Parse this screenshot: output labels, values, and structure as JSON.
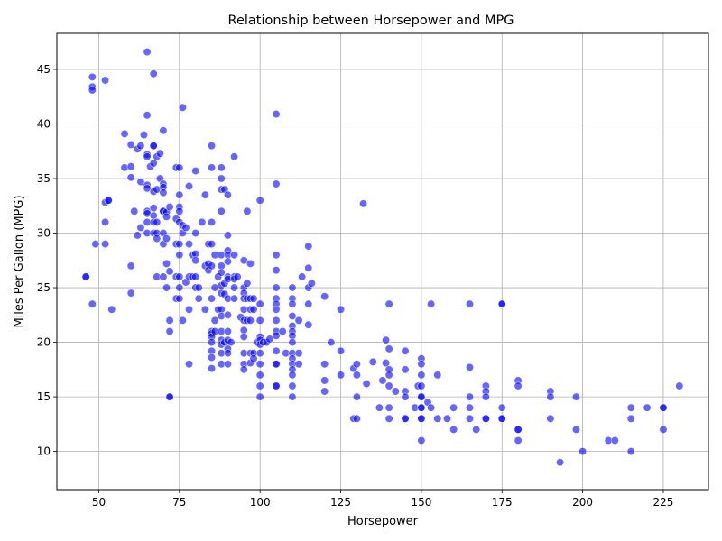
{
  "chart_data": {
    "type": "scatter",
    "title": "Relationship between Horsepower and MPG",
    "xlabel": "Horsepower",
    "ylabel": "Miles Per Gallon (MPG)",
    "xlim": [
      37,
      239
    ],
    "ylim": [
      6.5,
      48.3
    ],
    "xticks": [
      50,
      75,
      100,
      125,
      150,
      175,
      200,
      225
    ],
    "yticks": [
      10,
      15,
      20,
      25,
      30,
      35,
      40,
      45
    ],
    "grid": true,
    "marker_color": "#0000ff",
    "marker_alpha": 0.6,
    "points": [
      [
        46,
        26
      ],
      [
        46,
        26
      ],
      [
        48,
        44.3
      ],
      [
        48,
        43.4
      ],
      [
        48,
        43.1
      ],
      [
        48,
        23.5
      ],
      [
        49,
        29
      ],
      [
        52,
        44
      ],
      [
        52,
        32.8
      ],
      [
        52,
        31
      ],
      [
        52,
        29
      ],
      [
        53,
        33
      ],
      [
        53,
        33
      ],
      [
        54,
        23
      ],
      [
        58,
        39.1
      ],
      [
        58,
        36
      ],
      [
        60,
        38.1
      ],
      [
        60,
        36.1
      ],
      [
        60,
        35.1
      ],
      [
        60,
        27
      ],
      [
        60,
        24.5
      ],
      [
        61,
        32
      ],
      [
        62,
        37.7
      ],
      [
        62,
        29.8
      ],
      [
        63,
        38
      ],
      [
        63,
        34.7
      ],
      [
        63,
        30.5
      ],
      [
        64,
        39
      ],
      [
        65,
        46.6
      ],
      [
        65,
        40.8
      ],
      [
        65,
        37.2
      ],
      [
        65,
        37
      ],
      [
        65,
        34.4
      ],
      [
        65,
        34.1
      ],
      [
        65,
        32
      ],
      [
        65,
        31.8
      ],
      [
        65,
        31
      ],
      [
        65,
        30
      ],
      [
        66,
        36.1
      ],
      [
        67,
        44.6
      ],
      [
        67,
        38
      ],
      [
        67,
        38
      ],
      [
        67,
        36.4
      ],
      [
        67,
        33.8
      ],
      [
        67,
        32.3
      ],
      [
        67,
        31.6
      ],
      [
        67,
        31
      ],
      [
        67,
        30
      ],
      [
        68,
        37
      ],
      [
        68,
        34
      ],
      [
        68,
        31
      ],
      [
        68,
        30
      ],
      [
        68,
        29.5
      ],
      [
        68,
        26
      ],
      [
        69,
        37.3
      ],
      [
        69,
        35
      ],
      [
        70,
        39.4
      ],
      [
        70,
        34.5
      ],
      [
        70,
        34.2
      ],
      [
        70,
        33.7
      ],
      [
        70,
        32
      ],
      [
        70,
        32
      ],
      [
        70,
        30
      ],
      [
        70,
        29
      ],
      [
        70,
        26
      ],
      [
        71,
        31.9
      ],
      [
        71,
        31.5
      ],
      [
        71,
        29.5
      ],
      [
        71,
        27.2
      ],
      [
        71,
        25
      ],
      [
        72,
        32.4
      ],
      [
        72,
        26.5
      ],
      [
        72,
        22
      ],
      [
        72,
        21
      ],
      [
        72,
        15
      ],
      [
        72,
        15
      ],
      [
        74,
        36
      ],
      [
        74,
        31.3
      ],
      [
        74,
        29
      ],
      [
        74,
        26
      ],
      [
        74,
        24
      ],
      [
        75,
        36
      ],
      [
        75,
        33.5
      ],
      [
        75,
        32.4
      ],
      [
        75,
        32
      ],
      [
        75,
        31
      ],
      [
        75,
        29
      ],
      [
        75,
        28
      ],
      [
        75,
        26
      ],
      [
        75,
        25
      ],
      [
        75,
        24
      ],
      [
        76,
        41.5
      ],
      [
        76,
        30.7
      ],
      [
        76,
        30
      ],
      [
        76,
        22
      ],
      [
        77,
        30.5
      ],
      [
        77,
        25.5
      ],
      [
        78,
        34.3
      ],
      [
        78,
        29
      ],
      [
        78,
        26
      ],
      [
        78,
        23
      ],
      [
        78,
        18
      ],
      [
        79,
        28
      ],
      [
        79,
        26
      ],
      [
        80,
        35.7
      ],
      [
        80,
        30
      ],
      [
        80,
        28.1
      ],
      [
        80,
        27.5
      ],
      [
        80,
        26
      ],
      [
        80,
        25
      ],
      [
        81,
        25
      ],
      [
        81,
        24
      ],
      [
        82,
        31
      ],
      [
        83,
        33.5
      ],
      [
        83,
        27
      ],
      [
        83,
        23
      ],
      [
        84,
        29
      ],
      [
        84,
        27.2
      ],
      [
        84,
        26.6
      ],
      [
        85,
        38
      ],
      [
        85,
        36
      ],
      [
        85,
        31
      ],
      [
        85,
        29
      ],
      [
        85,
        27
      ],
      [
        85,
        24
      ],
      [
        85,
        21
      ],
      [
        85,
        20.8
      ],
      [
        85,
        20.5
      ],
      [
        85,
        20
      ],
      [
        85,
        19.2
      ],
      [
        85,
        18.6
      ],
      [
        85,
        17.6
      ],
      [
        86,
        28
      ],
      [
        86,
        25
      ],
      [
        86,
        22
      ],
      [
        86,
        21
      ],
      [
        87,
        26
      ],
      [
        87,
        23
      ],
      [
        88,
        36
      ],
      [
        88,
        35
      ],
      [
        88,
        34
      ],
      [
        88,
        32
      ],
      [
        88,
        28
      ],
      [
        88,
        27
      ],
      [
        88,
        26.4
      ],
      [
        88,
        25.2
      ],
      [
        88,
        24.5
      ],
      [
        88,
        23
      ],
      [
        88,
        22.4
      ],
      [
        88,
        21
      ],
      [
        88,
        20.2
      ],
      [
        88,
        19.8
      ],
      [
        88,
        19
      ],
      [
        88,
        18
      ],
      [
        89,
        34
      ],
      [
        89,
        25.4
      ],
      [
        89,
        24.4
      ],
      [
        89,
        20
      ],
      [
        90,
        33.5
      ],
      [
        90,
        29.8
      ],
      [
        90,
        28.4
      ],
      [
        90,
        28
      ],
      [
        90,
        27.4
      ],
      [
        90,
        26
      ],
      [
        90,
        25.8
      ],
      [
        90,
        24
      ],
      [
        90,
        22.5
      ],
      [
        90,
        21
      ],
      [
        90,
        20.2
      ],
      [
        90,
        19.4
      ],
      [
        90,
        19
      ],
      [
        90,
        18
      ],
      [
        91,
        20
      ],
      [
        92,
        37
      ],
      [
        92,
        28
      ],
      [
        92,
        26
      ],
      [
        92,
        25.8
      ],
      [
        92,
        25
      ],
      [
        92,
        24
      ],
      [
        93,
        26
      ],
      [
        94,
        22.3
      ],
      [
        95,
        27.5
      ],
      [
        95,
        25
      ],
      [
        95,
        24.5
      ],
      [
        95,
        24
      ],
      [
        95,
        23
      ],
      [
        95,
        22
      ],
      [
        95,
        21.1
      ],
      [
        95,
        20.5
      ],
      [
        95,
        19
      ],
      [
        95,
        18
      ],
      [
        95,
        17.5
      ],
      [
        96,
        32
      ],
      [
        96,
        25.4
      ],
      [
        96,
        24
      ],
      [
        96,
        22
      ],
      [
        97,
        27.2
      ],
      [
        97,
        24
      ],
      [
        97,
        23
      ],
      [
        97,
        22
      ],
      [
        97,
        19
      ],
      [
        97,
        18.1
      ],
      [
        98,
        24
      ],
      [
        98,
        23
      ],
      [
        98,
        19
      ],
      [
        98,
        18.5
      ],
      [
        99,
        20
      ],
      [
        100,
        33
      ],
      [
        100,
        23.5
      ],
      [
        100,
        22
      ],
      [
        100,
        20.5
      ],
      [
        100,
        20.2
      ],
      [
        100,
        19.8
      ],
      [
        100,
        19
      ],
      [
        100,
        18
      ],
      [
        100,
        17
      ],
      [
        100,
        16
      ],
      [
        100,
        15
      ],
      [
        101,
        20
      ],
      [
        102,
        20
      ],
      [
        103,
        20.3
      ],
      [
        105,
        40.9
      ],
      [
        105,
        34.5
      ],
      [
        105,
        28
      ],
      [
        105,
        26.6
      ],
      [
        105,
        25
      ],
      [
        105,
        24
      ],
      [
        105,
        23.5
      ],
      [
        105,
        23
      ],
      [
        105,
        22
      ],
      [
        105,
        21
      ],
      [
        105,
        20.6
      ],
      [
        105,
        19.2
      ],
      [
        105,
        18
      ],
      [
        105,
        18
      ],
      [
        105,
        16
      ],
      [
        105,
        16
      ],
      [
        107,
        21
      ],
      [
        108,
        19
      ],
      [
        110,
        25
      ],
      [
        110,
        24
      ],
      [
        110,
        23.5
      ],
      [
        110,
        22.4
      ],
      [
        110,
        21.5
      ],
      [
        110,
        21
      ],
      [
        110,
        20.6
      ],
      [
        110,
        20
      ],
      [
        110,
        19
      ],
      [
        110,
        18.5
      ],
      [
        110,
        18
      ],
      [
        110,
        17.5
      ],
      [
        110,
        17
      ],
      [
        110,
        16
      ],
      [
        110,
        15
      ],
      [
        112,
        22
      ],
      [
        112,
        19
      ],
      [
        112,
        18
      ],
      [
        113,
        26
      ],
      [
        115,
        28.8
      ],
      [
        115,
        26.8
      ],
      [
        115,
        25
      ],
      [
        115,
        23.5
      ],
      [
        115,
        21.6
      ],
      [
        116,
        25.4
      ],
      [
        120,
        24.2
      ],
      [
        120,
        18
      ],
      [
        120,
        16.5
      ],
      [
        120,
        15.5
      ],
      [
        122,
        20
      ],
      [
        125,
        23
      ],
      [
        125,
        19.2
      ],
      [
        125,
        17
      ],
      [
        129,
        17.6
      ],
      [
        129,
        13
      ],
      [
        130,
        18
      ],
      [
        130,
        17
      ],
      [
        130,
        15
      ],
      [
        130,
        13
      ],
      [
        132,
        32.7
      ],
      [
        133,
        16.2
      ],
      [
        135,
        18.2
      ],
      [
        137,
        14
      ],
      [
        138,
        16.5
      ],
      [
        139,
        20.2
      ],
      [
        139,
        18.1
      ],
      [
        140,
        23.5
      ],
      [
        140,
        19.4
      ],
      [
        140,
        17.5
      ],
      [
        140,
        17
      ],
      [
        140,
        16
      ],
      [
        140,
        14
      ],
      [
        140,
        13
      ],
      [
        142,
        15.5
      ],
      [
        145,
        19.2
      ],
      [
        145,
        17.5
      ],
      [
        145,
        15.5
      ],
      [
        145,
        15
      ],
      [
        145,
        13
      ],
      [
        145,
        13
      ],
      [
        148,
        14
      ],
      [
        149,
        16
      ],
      [
        150,
        18.5
      ],
      [
        150,
        18
      ],
      [
        150,
        17
      ],
      [
        150,
        16
      ],
      [
        150,
        15
      ],
      [
        150,
        15
      ],
      [
        150,
        14
      ],
      [
        150,
        14
      ],
      [
        150,
        13
      ],
      [
        150,
        13
      ],
      [
        150,
        11
      ],
      [
        152,
        14.5
      ],
      [
        153,
        23.5
      ],
      [
        153,
        14
      ],
      [
        155,
        17
      ],
      [
        155,
        13
      ],
      [
        158,
        13
      ],
      [
        160,
        14
      ],
      [
        160,
        12
      ],
      [
        165,
        23.5
      ],
      [
        165,
        17.7
      ],
      [
        165,
        15
      ],
      [
        165,
        14
      ],
      [
        165,
        13
      ],
      [
        167,
        12
      ],
      [
        170,
        16
      ],
      [
        170,
        15.5
      ],
      [
        170,
        15
      ],
      [
        170,
        13
      ],
      [
        170,
        13
      ],
      [
        175,
        23.5
      ],
      [
        175,
        23.5
      ],
      [
        175,
        14
      ],
      [
        175,
        13
      ],
      [
        175,
        13
      ],
      [
        180,
        16.5
      ],
      [
        180,
        16
      ],
      [
        180,
        12
      ],
      [
        180,
        12
      ],
      [
        180,
        11
      ],
      [
        190,
        15.5
      ],
      [
        190,
        15
      ],
      [
        190,
        13
      ],
      [
        193,
        9
      ],
      [
        198,
        15
      ],
      [
        198,
        12
      ],
      [
        200,
        10
      ],
      [
        208,
        11
      ],
      [
        210,
        11
      ],
      [
        215,
        14
      ],
      [
        215,
        13
      ],
      [
        215,
        10
      ],
      [
        220,
        14
      ],
      [
        225,
        14
      ],
      [
        225,
        14
      ],
      [
        225,
        12
      ],
      [
        230,
        16
      ]
    ]
  }
}
